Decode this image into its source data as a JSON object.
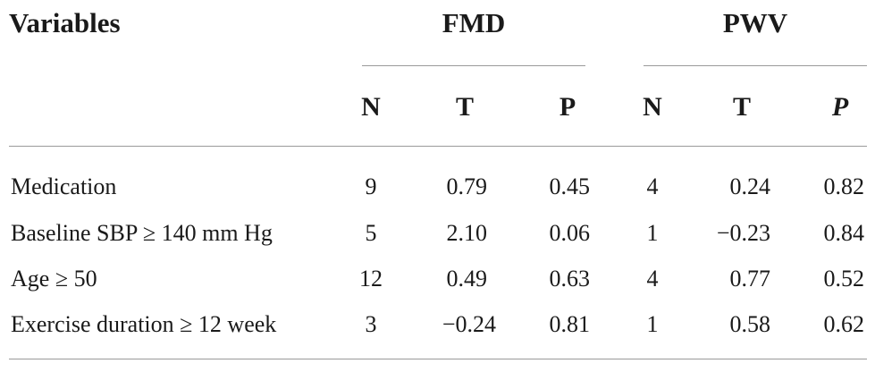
{
  "header": {
    "variables": "Variables",
    "group_fmd": "FMD",
    "group_pwv": "PWV"
  },
  "subheader": {
    "fmd_n": "N",
    "fmd_t": "T",
    "fmd_p": "P",
    "pwv_n": "N",
    "pwv_t": "T",
    "pwv_p": "P"
  },
  "rows": [
    {
      "label": "Medication",
      "fmd_n": "9",
      "fmd_t": "0.79",
      "fmd_p": "0.45",
      "pwv_n": "4",
      "pwv_t": "0.24",
      "pwv_p": "0.82"
    },
    {
      "label": "Baseline SBP ≥ 140 mm Hg",
      "fmd_n": "5",
      "fmd_t": "2.10",
      "fmd_p": "0.06",
      "pwv_n": "1",
      "pwv_t": "−0.23",
      "pwv_p": "0.84"
    },
    {
      "label": "Age ≥ 50",
      "fmd_n": "12",
      "fmd_t": "0.49",
      "fmd_p": "0.63",
      "pwv_n": "4",
      "pwv_t": "0.77",
      "pwv_p": "0.52"
    },
    {
      "label": "Exercise duration ≥ 12 week",
      "fmd_n": "3",
      "fmd_t": "−0.24",
      "fmd_p": "0.81",
      "pwv_n": "1",
      "pwv_t": "0.58",
      "pwv_p": "0.62"
    }
  ]
}
